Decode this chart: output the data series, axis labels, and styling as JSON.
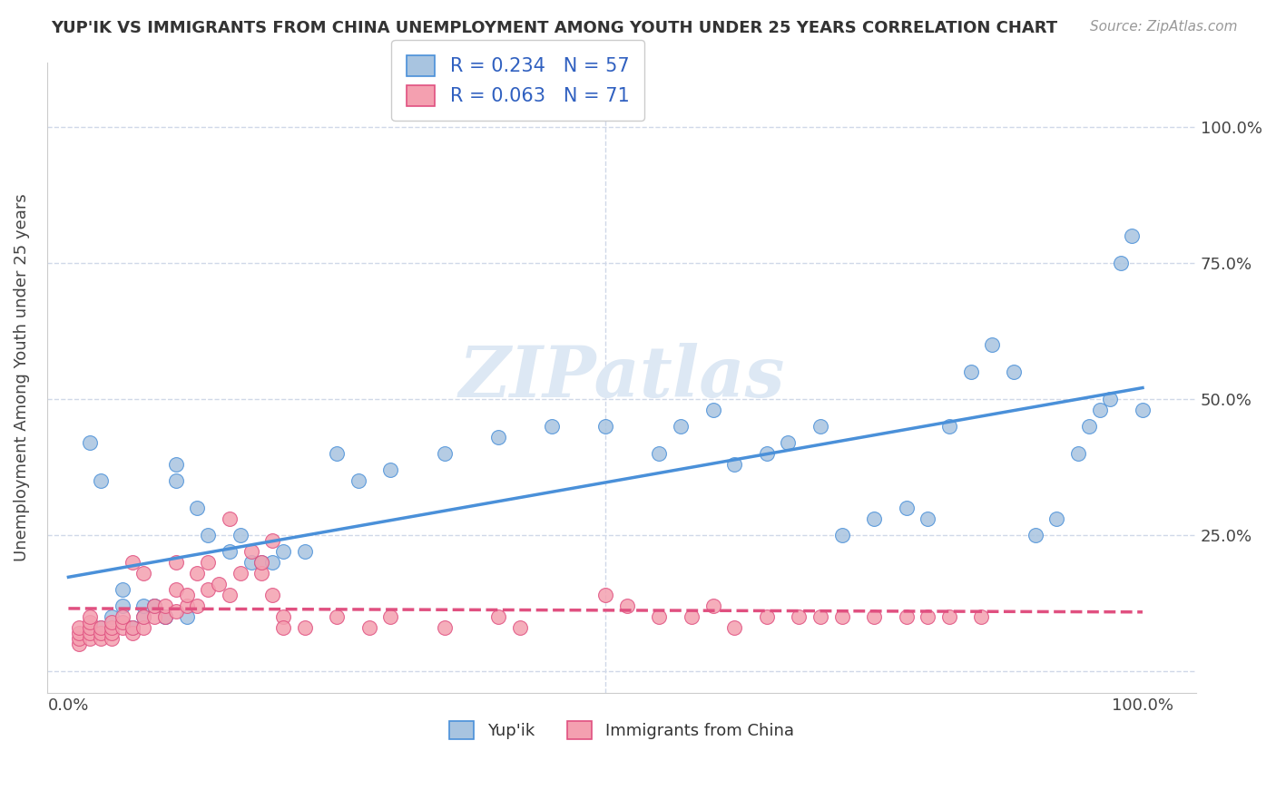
{
  "title": "YUP'IK VS IMMIGRANTS FROM CHINA UNEMPLOYMENT AMONG YOUTH UNDER 25 YEARS CORRELATION CHART",
  "source": "Source: ZipAtlas.com",
  "ylabel": "Unemployment Among Youth under 25 years",
  "series1_label": "Yup'ik",
  "series2_label": "Immigrants from China",
  "series1_color": "#a8c4e0",
  "series2_color": "#f4a0b0",
  "series1_line_color": "#4a90d9",
  "series2_line_color": "#e05080",
  "series1_R": "0.234",
  "series1_N": "57",
  "series2_R": "0.063",
  "series2_N": "71",
  "legend_R_color": "#3060c0",
  "watermark": "ZIPatlas",
  "background_color": "#ffffff",
  "grid_color": "#d0d8e8",
  "yticks": [
    0.0,
    0.25,
    0.5,
    0.75,
    1.0
  ],
  "ytick_labels": [
    "",
    "25.0%",
    "50.0%",
    "75.0%",
    "100.0%"
  ],
  "series1_x": [
    0.02,
    0.03,
    0.03,
    0.05,
    0.06,
    0.07,
    0.08,
    0.09,
    0.1,
    0.1,
    0.12,
    0.13,
    0.15,
    0.16,
    0.17,
    0.18,
    0.19,
    0.2,
    0.22,
    0.25,
    0.27,
    0.3,
    0.35,
    0.4,
    0.45,
    0.5,
    0.55,
    0.57,
    0.6,
    0.62,
    0.65,
    0.67,
    0.7,
    0.72,
    0.75,
    0.78,
    0.8,
    0.82,
    0.84,
    0.86,
    0.88,
    0.9,
    0.92,
    0.94,
    0.95,
    0.96,
    0.97,
    0.98,
    0.99,
    1.0,
    0.04,
    0.05,
    0.06,
    0.07,
    0.08,
    0.09,
    0.11
  ],
  "series1_y": [
    0.42,
    0.08,
    0.35,
    0.12,
    0.08,
    0.1,
    0.12,
    0.1,
    0.35,
    0.38,
    0.3,
    0.25,
    0.22,
    0.25,
    0.2,
    0.2,
    0.2,
    0.22,
    0.22,
    0.4,
    0.35,
    0.37,
    0.4,
    0.43,
    0.45,
    0.45,
    0.4,
    0.45,
    0.48,
    0.38,
    0.4,
    0.42,
    0.45,
    0.25,
    0.28,
    0.3,
    0.28,
    0.45,
    0.55,
    0.6,
    0.55,
    0.25,
    0.28,
    0.4,
    0.45,
    0.48,
    0.5,
    0.75,
    0.8,
    0.48,
    0.1,
    0.15,
    0.08,
    0.12,
    0.12,
    0.1,
    0.1
  ],
  "series2_x": [
    0.01,
    0.01,
    0.01,
    0.01,
    0.02,
    0.02,
    0.02,
    0.02,
    0.02,
    0.03,
    0.03,
    0.03,
    0.04,
    0.04,
    0.04,
    0.04,
    0.05,
    0.05,
    0.05,
    0.06,
    0.06,
    0.06,
    0.07,
    0.07,
    0.07,
    0.08,
    0.08,
    0.09,
    0.09,
    0.1,
    0.1,
    0.1,
    0.11,
    0.11,
    0.12,
    0.12,
    0.13,
    0.13,
    0.14,
    0.15,
    0.15,
    0.16,
    0.17,
    0.18,
    0.18,
    0.19,
    0.19,
    0.2,
    0.2,
    0.22,
    0.25,
    0.28,
    0.3,
    0.35,
    0.4,
    0.42,
    0.5,
    0.52,
    0.55,
    0.58,
    0.6,
    0.62,
    0.65,
    0.68,
    0.7,
    0.72,
    0.75,
    0.78,
    0.8,
    0.82,
    0.85
  ],
  "series2_y": [
    0.05,
    0.06,
    0.07,
    0.08,
    0.06,
    0.07,
    0.08,
    0.09,
    0.1,
    0.06,
    0.07,
    0.08,
    0.06,
    0.07,
    0.08,
    0.09,
    0.08,
    0.09,
    0.1,
    0.07,
    0.08,
    0.2,
    0.08,
    0.1,
    0.18,
    0.1,
    0.12,
    0.1,
    0.12,
    0.11,
    0.15,
    0.2,
    0.12,
    0.14,
    0.12,
    0.18,
    0.15,
    0.2,
    0.16,
    0.14,
    0.28,
    0.18,
    0.22,
    0.18,
    0.2,
    0.14,
    0.24,
    0.1,
    0.08,
    0.08,
    0.1,
    0.08,
    0.1,
    0.08,
    0.1,
    0.08,
    0.14,
    0.12,
    0.1,
    0.1,
    0.12,
    0.08,
    0.1,
    0.1,
    0.1,
    0.1,
    0.1,
    0.1,
    0.1,
    0.1,
    0.1
  ]
}
